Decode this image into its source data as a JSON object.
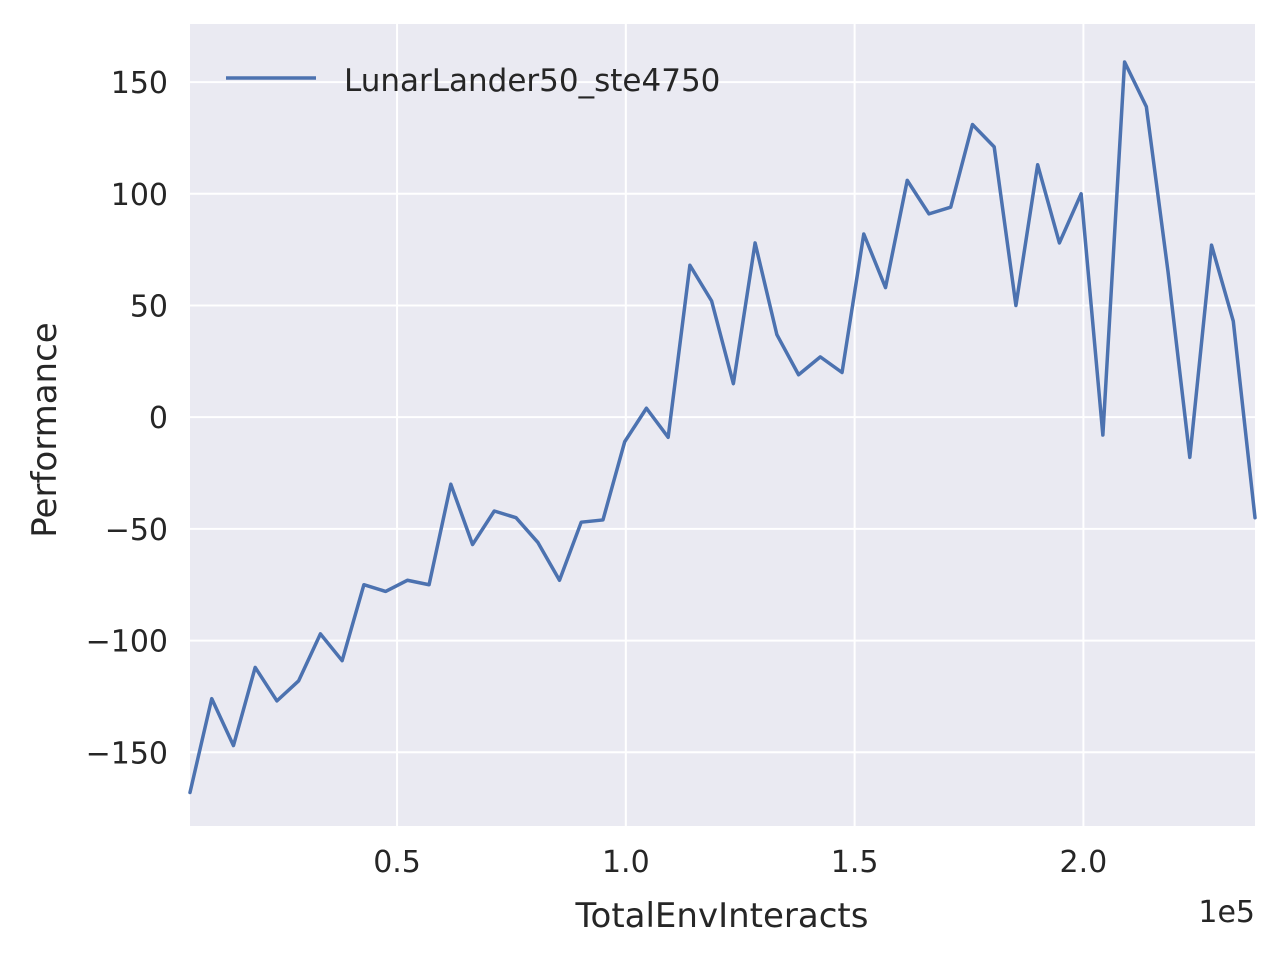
{
  "chart_data": {
    "type": "line",
    "xlabel": "TotalEnvInteracts",
    "ylabel": "Performance",
    "x_offset_label": "1e5",
    "xlim": [
      0.0475,
      2.375
    ],
    "ylim": [
      -183,
      176
    ],
    "x_ticks": [
      {
        "value": 0.5,
        "label": "0.5"
      },
      {
        "value": 1.0,
        "label": "1.0"
      },
      {
        "value": 1.5,
        "label": "1.5"
      },
      {
        "value": 2.0,
        "label": "2.0"
      }
    ],
    "y_ticks": [
      {
        "value": 150,
        "label": "150"
      },
      {
        "value": 100,
        "label": "100"
      },
      {
        "value": 50,
        "label": "50"
      },
      {
        "value": 0,
        "label": "0"
      },
      {
        "value": -50,
        "label": "−50"
      },
      {
        "value": -100,
        "label": "−100"
      },
      {
        "value": -150,
        "label": "−150"
      }
    ],
    "grid": true,
    "legend_position": "top-left",
    "series": [
      {
        "name": "LunarLander50_ste4750",
        "color": "#4c72b0",
        "x": [
          0.0475,
          0.095,
          0.1425,
          0.19,
          0.2375,
          0.285,
          0.3325,
          0.38,
          0.4275,
          0.475,
          0.5225,
          0.57,
          0.6175,
          0.665,
          0.7125,
          0.76,
          0.8075,
          0.855,
          0.9025,
          0.95,
          0.9975,
          1.045,
          1.0925,
          1.14,
          1.1875,
          1.235,
          1.2825,
          1.33,
          1.3775,
          1.425,
          1.4725,
          1.52,
          1.5675,
          1.615,
          1.6625,
          1.71,
          1.7575,
          1.805,
          1.8525,
          1.9,
          1.9475,
          1.995,
          2.0425,
          2.09,
          2.1375,
          2.185,
          2.2325,
          2.28,
          2.3275,
          2.375
        ],
        "y": [
          -168,
          -126,
          -147,
          -112,
          -127,
          -118,
          -97,
          -109,
          -75,
          -78,
          -73,
          -75,
          -30,
          -57,
          -42,
          -45,
          -56,
          -73,
          -47,
          -46,
          -11,
          4,
          -9,
          68,
          52,
          15,
          78,
          37,
          19,
          27,
          20,
          82,
          58,
          106,
          91,
          94,
          131,
          121,
          50,
          113,
          78,
          100,
          -8,
          159,
          139,
          65,
          -18,
          77,
          43,
          -45
        ]
      }
    ]
  }
}
